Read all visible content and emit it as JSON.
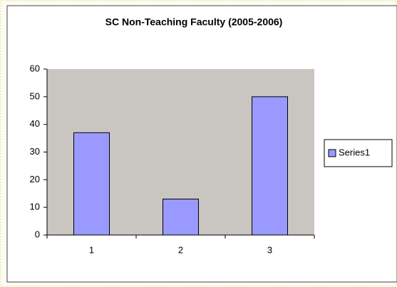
{
  "chart_data": {
    "type": "bar",
    "title": "SC Non-Teaching Faculty (2005-2006)",
    "categories": [
      "1",
      "2",
      "3"
    ],
    "series": [
      {
        "name": "Series1",
        "color": "#9999ff",
        "values": [
          37,
          13,
          50
        ]
      }
    ],
    "ylim": [
      0,
      60
    ],
    "yticks": [
      0,
      10,
      20,
      30,
      40,
      50,
      60
    ],
    "plot_background": "#c9c5c1",
    "legend": "right"
  }
}
